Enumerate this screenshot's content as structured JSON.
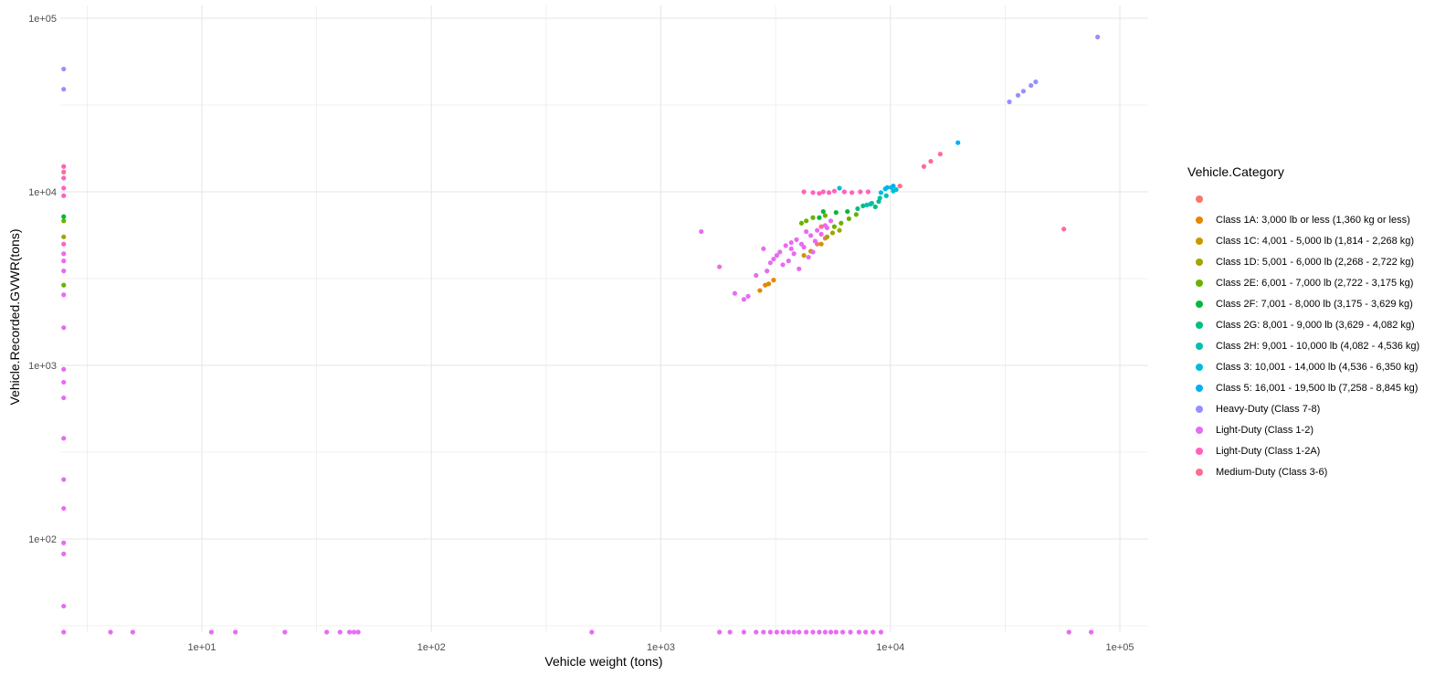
{
  "chart_data": {
    "type": "scatter",
    "xlabel": "Vehicle weight (tons)",
    "ylabel": "Vehicle.Recorded.GVWR(tons)",
    "x_scale": "log10",
    "y_scale": "log10",
    "xlim": [
      2.5,
      130000
    ],
    "ylim": [
      28,
      120000
    ],
    "x_ticks": [
      {
        "value": 10,
        "label": "1e+01"
      },
      {
        "value": 100,
        "label": "1e+02"
      },
      {
        "value": 1000,
        "label": "1e+03"
      },
      {
        "value": 10000,
        "label": "1e+04"
      },
      {
        "value": 100000,
        "label": "1e+05"
      }
    ],
    "y_ticks": [
      {
        "value": 100,
        "label": "1e+02"
      },
      {
        "value": 1000,
        "label": "1e+03"
      },
      {
        "value": 10000,
        "label": "1e+04"
      },
      {
        "value": 100000,
        "label": "1e+05"
      }
    ],
    "grid": true,
    "legend_title": "Vehicle.Category",
    "legend_position": "right",
    "series": [
      {
        "name": "",
        "color": "#F8766D",
        "points": [
          [
            5200,
            5400
          ],
          [
            4800,
            5000
          ]
        ]
      },
      {
        "name": "Class 1A: 3,000 lb or less (1,360 kg or less)",
        "color": "#E58700",
        "points": [
          [
            2700,
            2700
          ],
          [
            2850,
            2900
          ],
          [
            2950,
            2950
          ],
          [
            3100,
            3100
          ]
        ]
      },
      {
        "name": "Class 1C: 4,001 - 5,000 lb (1,814 - 2,268 kg)",
        "color": "#C99800",
        "points": [
          [
            4200,
            4300
          ],
          [
            4500,
            4550
          ],
          [
            5000,
            5000
          ]
        ]
      },
      {
        "name": "Class 1D: 5,001 - 6,000 lb (2,268 - 2,722 kg)",
        "color": "#A3A500",
        "points": [
          [
            5300,
            5500
          ],
          [
            5600,
            5800
          ],
          [
            6000,
            6000
          ],
          [
            2.5,
            5500
          ]
        ]
      },
      {
        "name": "Class 2E: 6,001 - 7,000 lb (2,722 - 3,175 kg)",
        "color": "#6BB100",
        "points": [
          [
            4100,
            6600
          ],
          [
            4600,
            7100
          ],
          [
            5200,
            7300
          ],
          [
            6100,
            6600
          ],
          [
            6600,
            7000
          ],
          [
            7100,
            7400
          ],
          [
            5700,
            6300
          ],
          [
            4300,
            6800
          ],
          [
            2.5,
            2900
          ],
          [
            2.5,
            6800
          ]
        ]
      },
      {
        "name": "Class 2F: 7,001 - 8,000 lb (3,175 - 3,629 kg)",
        "color": "#00BA38",
        "points": [
          [
            5100,
            7700
          ],
          [
            5800,
            7600
          ],
          [
            6500,
            7700
          ],
          [
            4900,
            7100
          ],
          [
            2.5,
            7200
          ]
        ]
      },
      {
        "name": "Class 2G: 8,001 - 9,000 lb (3,629 - 4,082 kg)",
        "color": "#00BF7D",
        "points": [
          [
            7600,
            8300
          ],
          [
            8200,
            8500
          ],
          [
            8900,
            8800
          ],
          [
            7200,
            8000
          ],
          [
            8600,
            8200
          ]
        ]
      },
      {
        "name": "Class 2H: 9,001 - 10,000 lb (4,082 - 4,536 kg)",
        "color": "#00C0AF",
        "points": [
          [
            8300,
            8600
          ],
          [
            9000,
            9200
          ],
          [
            9600,
            9500
          ],
          [
            7900,
            8400
          ]
        ]
      },
      {
        "name": "Class 3: 10,001 - 14,000 lb (4,536 - 6,350 kg)",
        "color": "#00BCD8",
        "points": [
          [
            9500,
            10400
          ],
          [
            10100,
            10600
          ],
          [
            10600,
            10300
          ],
          [
            9100,
            9900
          ],
          [
            10300,
            10100
          ],
          [
            6000,
            10500
          ]
        ]
      },
      {
        "name": "Class 5: 16,001 - 19,500 lb (7,258 - 8,845 kg)",
        "color": "#00B0F6",
        "points": [
          [
            19700,
            19200
          ],
          [
            9700,
            10600
          ],
          [
            10300,
            10800
          ]
        ]
      },
      {
        "name": "Heavy-Duty (Class 7-8)",
        "color": "#9590FF",
        "points": [
          [
            80000,
            78000
          ],
          [
            43000,
            43000
          ],
          [
            41000,
            41000
          ],
          [
            38000,
            38000
          ],
          [
            36000,
            36000
          ],
          [
            33000,
            33000
          ],
          [
            2.5,
            51000
          ],
          [
            2.5,
            39000
          ]
        ]
      },
      {
        "name": "Light-Duty (Class 1-2)",
        "color": "#E76BF3",
        "points": [
          [
            1500,
            5900
          ],
          [
            1800,
            3700
          ],
          [
            2100,
            2600
          ],
          [
            2300,
            2400
          ],
          [
            2400,
            2500
          ],
          [
            2600,
            3300
          ],
          [
            2800,
            4700
          ],
          [
            3100,
            4100
          ],
          [
            3300,
            4500
          ],
          [
            3500,
            4900
          ],
          [
            3700,
            5100
          ],
          [
            3900,
            5300
          ],
          [
            3400,
            3800
          ],
          [
            3800,
            4400
          ],
          [
            4200,
            4800
          ],
          [
            4500,
            5600
          ],
          [
            4800,
            6000
          ],
          [
            5200,
            6400
          ],
          [
            4000,
            3600
          ],
          [
            4400,
            4200
          ],
          [
            4700,
            5200
          ],
          [
            3600,
            4000
          ],
          [
            3000,
            3900
          ],
          [
            5000,
            5700
          ],
          [
            5500,
            6800
          ],
          [
            4100,
            5000
          ],
          [
            3200,
            4300
          ],
          [
            4600,
            4500
          ],
          [
            2900,
            3500
          ],
          [
            4300,
            5900
          ],
          [
            3700,
            4700
          ],
          [
            5300,
            6200
          ],
          [
            2.5,
            3500
          ],
          [
            2.5,
            4000
          ],
          [
            2.5,
            4400
          ],
          [
            2.5,
            2550
          ],
          [
            2.5,
            1650
          ],
          [
            2.5,
            950
          ],
          [
            2.5,
            800
          ],
          [
            2.5,
            650
          ],
          [
            2.5,
            380
          ],
          [
            2.5,
            220
          ],
          [
            2.5,
            150
          ],
          [
            2.5,
            95
          ],
          [
            2.5,
            82
          ],
          [
            2.5,
            41
          ],
          [
            2.5,
            28
          ],
          [
            4,
            28
          ],
          [
            5,
            28
          ],
          [
            11,
            28
          ],
          [
            14,
            28
          ],
          [
            23,
            28
          ],
          [
            35,
            28
          ],
          [
            40,
            28
          ],
          [
            44,
            28
          ],
          [
            46,
            28
          ],
          [
            48,
            28
          ],
          [
            500,
            28
          ],
          [
            1800,
            28
          ],
          [
            2000,
            28
          ],
          [
            2300,
            28
          ],
          [
            2600,
            28
          ],
          [
            2800,
            28
          ],
          [
            3000,
            28
          ],
          [
            3200,
            28
          ],
          [
            3400,
            28
          ],
          [
            3600,
            28
          ],
          [
            3800,
            28
          ],
          [
            4000,
            28
          ],
          [
            4300,
            28
          ],
          [
            4600,
            28
          ],
          [
            4900,
            28
          ],
          [
            5200,
            28
          ],
          [
            5500,
            28
          ],
          [
            5800,
            28
          ],
          [
            6200,
            28
          ],
          [
            6700,
            28
          ],
          [
            7300,
            28
          ],
          [
            7800,
            28
          ],
          [
            8400,
            28
          ],
          [
            9100,
            28
          ],
          [
            60000,
            28
          ],
          [
            75000,
            28
          ]
        ]
      },
      {
        "name": "Light-Duty (Class 1-2A)",
        "color": "#FF62BC",
        "points": [
          [
            4200,
            10000
          ],
          [
            4600,
            9900
          ],
          [
            5100,
            10000
          ],
          [
            5700,
            10100
          ],
          [
            6300,
            10000
          ],
          [
            6800,
            9900
          ],
          [
            7400,
            10000
          ],
          [
            8000,
            10000
          ],
          [
            4900,
            9800
          ],
          [
            5400,
            9900
          ],
          [
            2.5,
            14000
          ],
          [
            2.5,
            12000
          ],
          [
            2.5,
            10500
          ],
          [
            2.5,
            9500
          ],
          [
            2.5,
            5000
          ]
        ]
      },
      {
        "name": "Medium-Duty (Class 3-6)",
        "color": "#FF6C90",
        "points": [
          [
            11000,
            10800
          ],
          [
            14000,
            14000
          ],
          [
            15000,
            15000
          ],
          [
            16500,
            16500
          ],
          [
            57000,
            6100
          ],
          [
            5000,
            6300
          ],
          [
            2.5,
            13000
          ]
        ]
      }
    ]
  }
}
